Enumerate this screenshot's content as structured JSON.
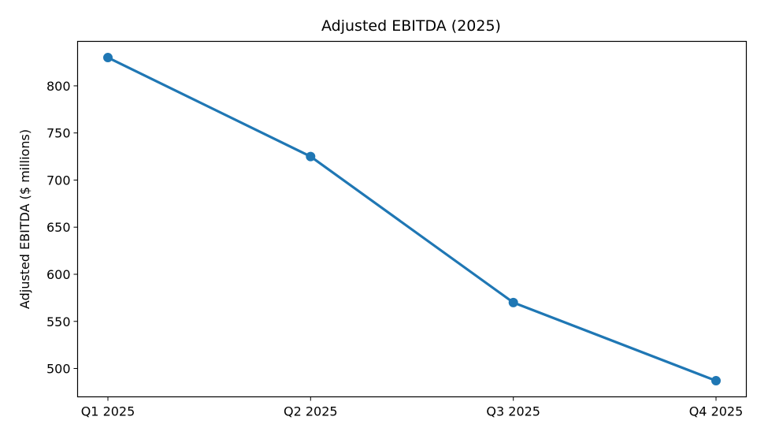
{
  "chart_data": {
    "type": "line",
    "title": "Adjusted EBITDA (2025)",
    "xlabel": "",
    "ylabel": "Adjusted EBITDA ($ millions)",
    "categories": [
      "Q1 2025",
      "Q2 2025",
      "Q3 2025",
      "Q4 2025"
    ],
    "values": [
      830,
      725,
      570,
      487
    ],
    "ylim": [
      469.9,
      847.2
    ],
    "yticks": [
      500,
      550,
      600,
      650,
      700,
      750,
      800
    ],
    "grid": false,
    "color": "#1f77b4",
    "markers": true
  }
}
